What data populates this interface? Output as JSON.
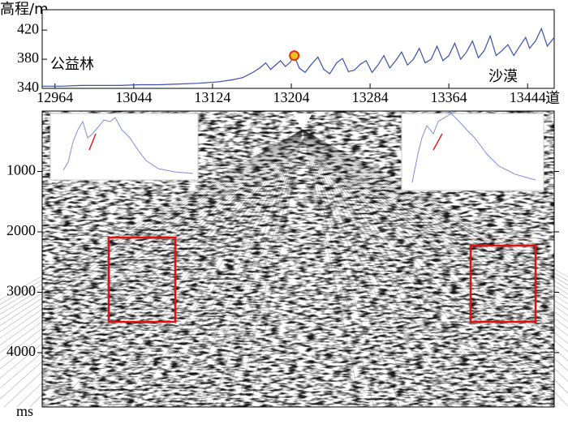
{
  "chart_data": [
    {
      "type": "line",
      "ylabel": "高程/m",
      "xlabel": "道",
      "x": [
        12951,
        12970,
        12990,
        13010,
        13030,
        13050,
        13070,
        13090,
        13110,
        13130,
        13145,
        13155,
        13165,
        13172,
        13178,
        13183,
        13188,
        13193,
        13198,
        13203,
        13207,
        13212,
        13218,
        13225,
        13231,
        13237,
        13243,
        13250,
        13256,
        13262,
        13268,
        13274,
        13280,
        13286,
        13292,
        13298,
        13304,
        13310,
        13316,
        13322,
        13328,
        13334,
        13340,
        13346,
        13352,
        13358,
        13364,
        13370,
        13376,
        13382,
        13388,
        13394,
        13400,
        13406,
        13412,
        13418,
        13424,
        13430,
        13436,
        13442,
        13446,
        13452,
        13458,
        13464,
        13471
      ],
      "series": [
        {
          "color": "#3a4fb0",
          "values": [
            343,
            343,
            344,
            344,
            344,
            345,
            345,
            346,
            347,
            349,
            352,
            355,
            362,
            368,
            375,
            366,
            372,
            378,
            370,
            376,
            385,
            368,
            362,
            374,
            383,
            366,
            360,
            375,
            381,
            363,
            365,
            373,
            378,
            362,
            372,
            385,
            368,
            378,
            390,
            372,
            380,
            395,
            375,
            380,
            398,
            378,
            385,
            402,
            380,
            390,
            405,
            382,
            392,
            412,
            385,
            392,
            400,
            385,
            398,
            410,
            395,
            405,
            422,
            398,
            410
          ]
        }
      ],
      "xlim": [
        12951,
        13471
      ],
      "xticks": [
        12964,
        13044,
        13124,
        13204,
        13284,
        13364,
        13444
      ],
      "ylim": [
        340,
        448
      ],
      "yticks": [
        340,
        380,
        420
      ],
      "annotations": [
        {
          "text": "公益林"
        },
        {
          "text": "沙漠"
        }
      ],
      "marker": {
        "x": 13207,
        "y": 385,
        "color": "#f0c020"
      }
    },
    {
      "type": "image",
      "ylabel": "ms",
      "ylim": [
        0,
        4900
      ],
      "yticks": [
        1000,
        2000,
        3000,
        4000
      ]
    }
  ]
}
